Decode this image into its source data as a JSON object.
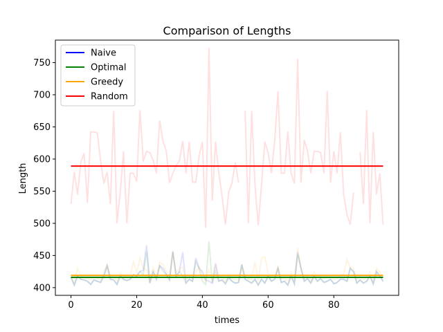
{
  "chart_data": {
    "type": "line",
    "title": "Comparison of Lengths",
    "xlabel": "times",
    "ylabel": "Length",
    "xlim": [
      -4.75,
      99.75
    ],
    "ylim": [
      388,
      785
    ],
    "xticks": [
      0,
      20,
      40,
      60,
      80
    ],
    "yticks": [
      400,
      450,
      500,
      550,
      600,
      650,
      700,
      750
    ],
    "grid": false,
    "legend_position": "top-left",
    "legend": [
      {
        "label": "Naive",
        "color": "#0000ff"
      },
      {
        "label": "Optimal",
        "color": "#008000"
      },
      {
        "label": "Greedy",
        "color": "#ffa500"
      },
      {
        "label": "Random",
        "color": "#ff0000"
      }
    ],
    "averages": [
      {
        "name": "Naive",
        "color": "#0000ff",
        "value": 416
      },
      {
        "name": "Optimal",
        "color": "#008000",
        "value": 416
      },
      {
        "name": "Greedy",
        "color": "#ffa500",
        "value": 419
      },
      {
        "name": "Random",
        "color": "#ff0000",
        "value": 589
      }
    ],
    "x": [
      0,
      1,
      2,
      3,
      4,
      5,
      6,
      7,
      8,
      9,
      10,
      11,
      12,
      13,
      14,
      15,
      16,
      17,
      18,
      19,
      20,
      21,
      22,
      23,
      24,
      25,
      26,
      27,
      28,
      29,
      30,
      31,
      32,
      33,
      34,
      35,
      36,
      37,
      38,
      39,
      40,
      41,
      42,
      43,
      44,
      45,
      46,
      47,
      48,
      49,
      50,
      51,
      52,
      53,
      54,
      55,
      56,
      57,
      58,
      59,
      60,
      61,
      62,
      63,
      64,
      65,
      66,
      67,
      68,
      69,
      70,
      71,
      72,
      73,
      74,
      75,
      76,
      77,
      78,
      79,
      80,
      81,
      82,
      83,
      84,
      85,
      86,
      87,
      88,
      89,
      90,
      91,
      92,
      93,
      94,
      95
    ],
    "series": [
      {
        "name": "Random",
        "color": "#ff0000",
        "opacity": 0.12,
        "values": [
          530,
          580,
          545,
          595,
          609,
          532,
          642,
          642,
          641,
          598,
          562,
          580,
          530,
          675,
          500,
          549,
          612,
          500,
          578,
          578,
          565,
          676,
          596,
          612,
          610,
          598,
          578,
          660,
          628,
          613,
          563,
          578,
          590,
          597,
          628,
          578,
          627,
          564,
          564,
          605,
          627,
          493,
          773,
          535,
          627,
          578,
          542,
          498,
          548,
          563,
          595,
          563,
          null,
          675,
          500,
          675,
          560,
          497,
          560,
          627,
          610,
          578,
          628,
          706,
          578,
          578,
          643,
          578,
          562,
          756,
          563,
          630,
          612,
          578,
          612,
          612,
          610,
          578,
          706,
          563,
          612,
          578,
          642,
          545,
          514,
          498,
          548,
          null,
          611,
          530,
          676,
          500,
          642,
          545,
          578,
          498
        ]
      },
      {
        "name": "Naive",
        "color": "#0000ff",
        "opacity": 0.12,
        "values": [
          416,
          404,
          418,
          413,
          412,
          410,
          405,
          412,
          410,
          408,
          418,
          434,
          413,
          412,
          405,
          418,
          413,
          411,
          413,
          420,
          418,
          425,
          427,
          466,
          407,
          425,
          413,
          434,
          430,
          421,
          412,
          456,
          418,
          425,
          455,
          407,
          413,
          410,
          446,
          430,
          425,
          412,
          410,
          407,
          438,
          410,
          412,
          406,
          416,
          410,
          407,
          408,
          436,
          413,
          410,
          407,
          413,
          404,
          413,
          407,
          418,
          410,
          413,
          430,
          408,
          410,
          404,
          418,
          406,
          455,
          430,
          410,
          414,
          407,
          418,
          410,
          414,
          408,
          410,
          413,
          406,
          408,
          413,
          413,
          410,
          430,
          425,
          407,
          412,
          407,
          410,
          418,
          406,
          425,
          418,
          410
        ]
      },
      {
        "name": "Optimal",
        "color": "#008000",
        "opacity": 0.12,
        "values": [
          416,
          404,
          418,
          413,
          412,
          410,
          405,
          412,
          410,
          408,
          418,
          434,
          413,
          412,
          405,
          418,
          413,
          411,
          413,
          420,
          418,
          425,
          420,
          455,
          407,
          425,
          413,
          434,
          425,
          421,
          412,
          456,
          418,
          425,
          418,
          407,
          413,
          410,
          440,
          430,
          410,
          405,
          472,
          407,
          425,
          410,
          412,
          406,
          416,
          410,
          407,
          408,
          436,
          413,
          410,
          407,
          413,
          404,
          413,
          407,
          418,
          410,
          413,
          430,
          408,
          410,
          404,
          418,
          406,
          452,
          430,
          410,
          414,
          407,
          418,
          410,
          414,
          408,
          410,
          413,
          406,
          408,
          413,
          413,
          410,
          430,
          425,
          407,
          412,
          407,
          410,
          418,
          406,
          425,
          418,
          410
        ]
      },
      {
        "name": "Greedy",
        "color": "#ffa500",
        "opacity": 0.12,
        "values": [
          420,
          410,
          430,
          418,
          415,
          414,
          412,
          416,
          414,
          412,
          425,
          436,
          418,
          418,
          410,
          422,
          418,
          416,
          418,
          440,
          424,
          446,
          430,
          428,
          412,
          432,
          418,
          440,
          436,
          426,
          418,
          456,
          424,
          430,
          432,
          412,
          418,
          414,
          424,
          432,
          420,
          410,
          428,
          412,
          436,
          416,
          418,
          410,
          420,
          414,
          412,
          412,
          430,
          418,
          414,
          412,
          440,
          410,
          446,
          448,
          422,
          416,
          418,
          432,
          414,
          414,
          410,
          424,
          412,
          462,
          432,
          414,
          418,
          412,
          424,
          416,
          418,
          414,
          416,
          418,
          412,
          414,
          420,
          420,
          444,
          432,
          430,
          412,
          418,
          412,
          416,
          424,
          412,
          430,
          424,
          416
        ]
      }
    ]
  }
}
